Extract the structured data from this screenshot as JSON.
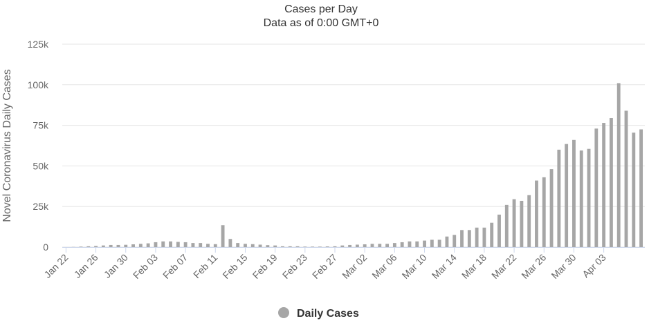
{
  "chart_data": {
    "type": "bar",
    "title": "Cases per Day",
    "subtitle": "Data as of 0:00 GMT+0",
    "ylabel": "Novel Coronavirus Daily Cases",
    "xlabel": "",
    "ylim": [
      0,
      125000
    ],
    "y_ticks": [
      0,
      25000,
      50000,
      75000,
      100000,
      125000
    ],
    "y_tick_labels": [
      "0",
      "25k",
      "50k",
      "75k",
      "100k",
      "125k"
    ],
    "grid": true,
    "legend": {
      "position": "bottom-center",
      "entries": [
        "Daily Cases"
      ]
    },
    "x_tick_labels": [
      "Jan 22",
      "Jan 26",
      "Jan 30",
      "Feb 03",
      "Feb 07",
      "Feb 11",
      "Feb 15",
      "Feb 19",
      "Feb 23",
      "Feb 27",
      "Mar 02",
      "Mar 06",
      "Mar 10",
      "Mar 14",
      "Mar 18",
      "Mar 22",
      "Mar 26",
      "Mar 30",
      "Apr 03"
    ],
    "x_tick_every": 4,
    "series": [
      {
        "name": "Daily Cases",
        "color": "#a6a6a6",
        "values": [
          0,
          100,
          300,
          500,
          700,
          1000,
          1300,
          1300,
          1400,
          1700,
          2000,
          2300,
          3000,
          3500,
          3500,
          3200,
          3000,
          2500,
          2500,
          2000,
          1800,
          13500,
          5000,
          2500,
          2000,
          1800,
          1500,
          1200,
          1000,
          500,
          500,
          500,
          300,
          300,
          300,
          400,
          500,
          1000,
          1300,
          1500,
          1700,
          2000,
          2000,
          2000,
          2500,
          3000,
          3500,
          3500,
          4000,
          4500,
          4500,
          6500,
          7500,
          10500,
          10500,
          12000,
          12000,
          15000,
          20000,
          26000,
          29500,
          28500,
          32000,
          41000,
          43000,
          48000,
          60000,
          63500,
          66000,
          59500,
          60500,
          73000,
          76500,
          79500,
          101000,
          84000,
          70500,
          72500
        ]
      }
    ]
  }
}
